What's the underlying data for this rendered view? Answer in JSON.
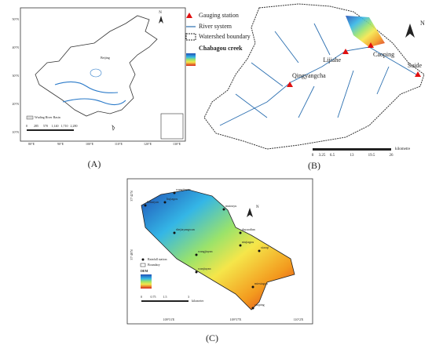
{
  "panel_a": {
    "label": "(A)",
    "north": "N",
    "place": "Beijing",
    "legend": "Wuding River Basin",
    "latitudes": [
      "50°N",
      "40°N",
      "30°N",
      "20°N",
      "10°N"
    ],
    "longitudes": [
      "80°E",
      "90°E",
      "100°E",
      "110°E",
      "120°E",
      "130°E"
    ],
    "scale": [
      "0",
      "285",
      "570",
      "1,140",
      "1,710",
      "2,280"
    ]
  },
  "panel_b": {
    "label": "(B)",
    "north": "N",
    "legend": [
      "Gauging station",
      "River system",
      "Watershed boundary",
      "Chabagou creek"
    ],
    "stations": [
      "Lijiahe",
      "Caoping",
      "Suide",
      "Qingyangcha"
    ],
    "scale": [
      "0",
      "3.25",
      "6.5",
      "13",
      "19.5",
      "26"
    ],
    "scale_unit": "kilometre"
  },
  "panel_c": {
    "label": "(C)",
    "north": "N",
    "stations": [
      "wangjiayan",
      "lizhuiyan",
      "liujiagou",
      "mutouyu",
      "shejiayangwan",
      "duyaodian",
      "niujiagou",
      "xiaoqi",
      "wangjiayan",
      "wanjiayan",
      "caoping",
      "miexiagou"
    ],
    "legend": [
      "Rainfall station",
      "Boundary",
      "DEM"
    ],
    "latitudes": [
      "37°42'N",
      "37°48'N"
    ],
    "longitudes": [
      "109°51'E",
      "109°57'E",
      "110°2'E"
    ],
    "scale": [
      "0",
      "0.75",
      "1.5",
      "3"
    ],
    "scale_unit": "kilometer"
  }
}
